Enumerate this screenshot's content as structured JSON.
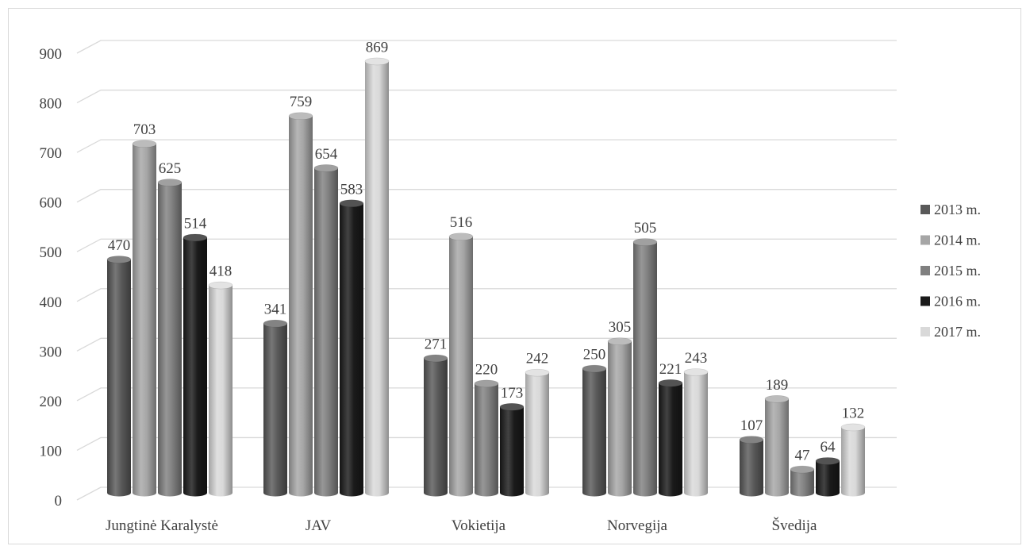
{
  "chart_data": {
    "type": "bar",
    "style": "3d-cylinder",
    "title": "",
    "xlabel": "",
    "ylabel": "",
    "ylim": [
      0,
      900
    ],
    "yticks": [
      "0",
      "100",
      "200",
      "300",
      "400",
      "500",
      "600",
      "700",
      "800",
      "900"
    ],
    "grid": true,
    "legend_position": "right",
    "categories": [
      "Jungtinė Karalystė",
      "JAV",
      "Vokietija",
      "Norvegija",
      "Švedija"
    ],
    "series": [
      {
        "name": "2013 m.",
        "color": "#595959",
        "values": [
          470,
          341,
          271,
          250,
          107
        ]
      },
      {
        "name": "2014 m.",
        "color": "#a6a6a6",
        "values": [
          703,
          759,
          516,
          305,
          189
        ]
      },
      {
        "name": "2015 m.",
        "color": "#808080",
        "values": [
          625,
          654,
          220,
          505,
          47
        ]
      },
      {
        "name": "2016 m.",
        "color": "#1a1a1a",
        "values": [
          514,
          583,
          173,
          221,
          64
        ]
      },
      {
        "name": "2017 m.",
        "color": "#d9d9d9",
        "values": [
          418,
          869,
          242,
          243,
          132
        ]
      }
    ]
  }
}
